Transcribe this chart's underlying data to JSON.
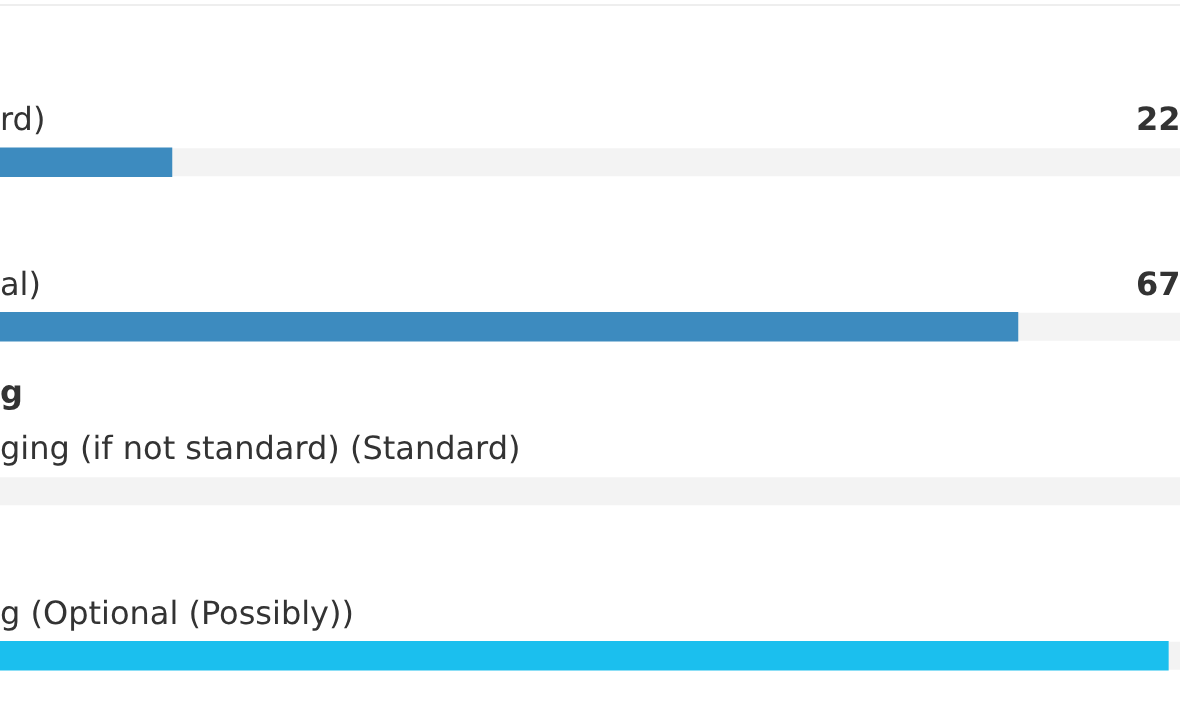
{
  "chart_data": {
    "type": "bar",
    "orientation": "horizontal",
    "categories": [
      "rd)",
      "al)",
      "ging (if not standard) (Standard)",
      "g (Optional (Possibly))"
    ],
    "values": [
      22,
      67,
      0,
      75
    ],
    "value_labels": [
      "22",
      "67",
      null,
      null
    ],
    "colors": [
      "#3d8bbf",
      "#3d8bbf",
      "#3d8bbf",
      "#1bbfee"
    ],
    "xlim": [
      0,
      100
    ],
    "annotations": [
      "g"
    ],
    "legend": false,
    "tick_labels": false
  }
}
